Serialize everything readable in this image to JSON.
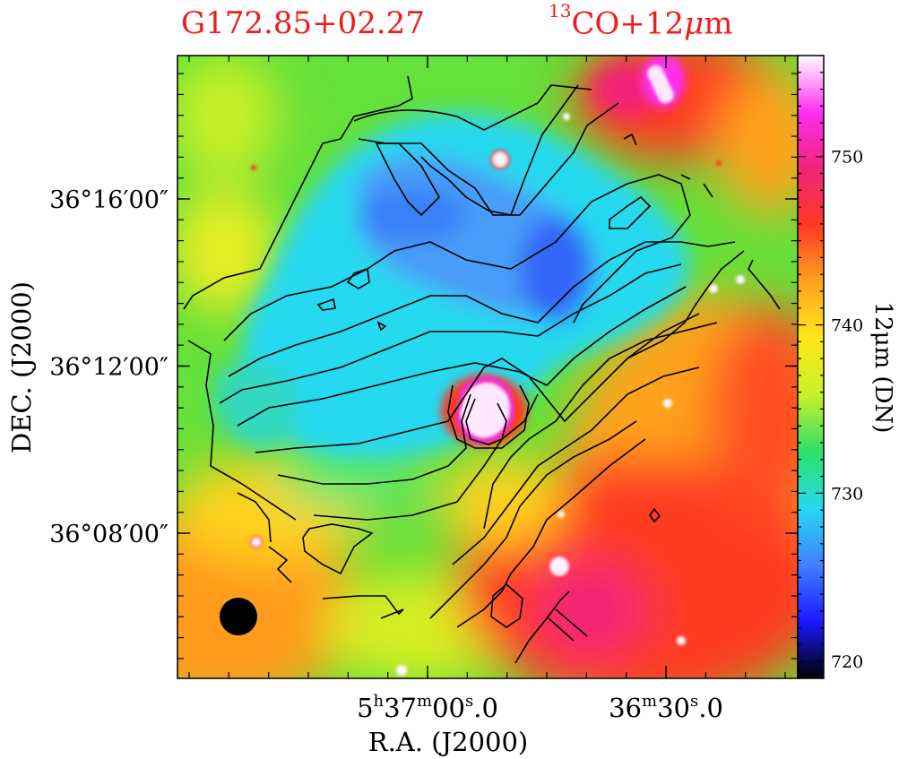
{
  "chart_data": {
    "type": "heatmap",
    "title_left": "G172.85+02.27",
    "title_right": {
      "sup": "13",
      "text": "CO+12",
      "mu": "μ",
      "tail": "m"
    },
    "xlabel": "R.A.  (J2000)",
    "ylabel": "DEC.  (J2000)",
    "colorbar_label": "12μm  (DN)",
    "colorbar_range": [
      719,
      756
    ],
    "colorbar_ticks": [
      720,
      730,
      740,
      750
    ],
    "colorbar_colors": [
      "#000000",
      "#1a18ff",
      "#4080ff",
      "#26d9f0",
      "#2de06a",
      "#c8f028",
      "#ffe818",
      "#ffa21c",
      "#ff3a22",
      "#f0247a",
      "#ff2df0",
      "#ffffff"
    ],
    "x_ticks": [
      {
        "h": "5",
        "hs": "h",
        "m": "37",
        "ms": "m",
        "s": "00",
        "ss": "s",
        "frac": ".0",
        "ra_sec": 19020
      },
      {
        "h": "",
        "hs": "",
        "m": "36",
        "ms": "m",
        "s": "30",
        "ss": "s",
        "frac": ".0",
        "ra_sec": 18990
      }
    ],
    "y_ticks": [
      {
        "label": "36°16′00″",
        "dec_arcmin": 16
      },
      {
        "label": "36°12′00″",
        "dec_arcmin": 12
      },
      {
        "label": "36°08′00″",
        "dec_arcmin": 8
      }
    ],
    "contours": "13CO integrated intensity",
    "beam": "filled circle, lower left"
  }
}
